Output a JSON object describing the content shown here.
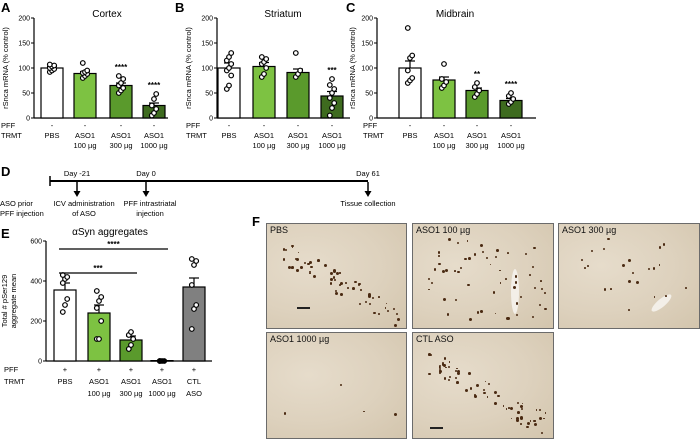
{
  "panel_letters": {
    "a": "A",
    "b": "B",
    "c": "C",
    "d": "D",
    "e": "E",
    "f": "F"
  },
  "row_labels": {
    "pff": "PFF",
    "trmt": "TRMT"
  },
  "chart_data": [
    {
      "id": "cortex",
      "type": "bar",
      "title": "Cortex",
      "ylabel": "rSnca mRNA (% control)",
      "ylim": [
        0,
        200
      ],
      "yticks": [
        0,
        50,
        100,
        150,
        200
      ],
      "categories": [
        [
          "PBS",
          ""
        ],
        [
          "ASO1",
          "100 µg"
        ],
        [
          "ASO1",
          "300 µg"
        ],
        [
          "ASO1",
          "1000 µg"
        ]
      ],
      "pff": [
        "-",
        "-",
        "-",
        "-"
      ],
      "values": [
        100,
        89,
        65,
        25
      ],
      "sem": [
        3,
        4,
        5,
        5
      ],
      "colors": [
        "#ffffff",
        "#7dc242",
        "#5a9a2c",
        "#3e6b1f"
      ],
      "significance": [
        "",
        "",
        "****",
        "****"
      ],
      "points": [
        [
          92,
          95,
          98,
          100,
          103,
          105,
          107
        ],
        [
          80,
          84,
          88,
          90,
          92,
          95,
          110
        ],
        [
          50,
          55,
          60,
          65,
          70,
          78,
          84
        ],
        [
          5,
          10,
          18,
          25,
          38,
          48
        ]
      ]
    },
    {
      "id": "striatum",
      "type": "bar",
      "title": "Striatum",
      "ylabel": "rSnca mRNA (% control)",
      "ylim": [
        0,
        200
      ],
      "yticks": [
        0,
        50,
        100,
        150,
        200
      ],
      "categories": [
        [
          "PBS",
          ""
        ],
        [
          "ASO1",
          "100 µg"
        ],
        [
          "ASO1",
          "300 µg"
        ],
        [
          "ASO1",
          "1000 µg"
        ]
      ],
      "pff": [
        "-",
        "-",
        "-",
        "-"
      ],
      "values": [
        100,
        103,
        91,
        44
      ],
      "sem": [
        10,
        8,
        7,
        9
      ],
      "colors": [
        "#ffffff",
        "#7dc242",
        "#5a9a2c",
        "#3e6b1f"
      ],
      "significance": [
        "",
        "",
        "",
        "***"
      ],
      "points": [
        [
          58,
          65,
          85,
          95,
          100,
          108,
          115,
          122,
          130
        ],
        [
          82,
          88,
          100,
          108,
          112,
          118,
          122
        ],
        [
          82,
          88,
          95,
          130
        ],
        [
          5,
          20,
          30,
          40,
          50,
          58,
          66,
          78
        ]
      ]
    },
    {
      "id": "midbrain",
      "type": "bar",
      "title": "Midbrain",
      "ylabel": "rSnca mRNA (% control)",
      "ylim": [
        0,
        200
      ],
      "yticks": [
        0,
        50,
        100,
        150,
        200
      ],
      "categories": [
        [
          "PBS",
          ""
        ],
        [
          "ASO1",
          "100 µg"
        ],
        [
          "ASO1",
          "300 µg"
        ],
        [
          "ASO1",
          "1000 µg"
        ]
      ],
      "pff": [
        "-",
        "-",
        "-",
        "-"
      ],
      "values": [
        100,
        76,
        55,
        35
      ],
      "sem": [
        14,
        6,
        5,
        4
      ],
      "colors": [
        "#ffffff",
        "#7dc242",
        "#5a9a2c",
        "#3e6b1f"
      ],
      "significance": [
        "",
        "",
        "**",
        "****"
      ],
      "points": [
        [
          70,
          75,
          80,
          95,
          120,
          125,
          180
        ],
        [
          60,
          65,
          72,
          78,
          108
        ],
        [
          42,
          48,
          55,
          62,
          70
        ],
        [
          28,
          32,
          38,
          44,
          50
        ]
      ]
    },
    {
      "id": "aggregates",
      "type": "bar",
      "title": "αSyn aggregates",
      "ylabel": [
        "Total # pSer129",
        "aggregate mean"
      ],
      "ylim": [
        0,
        600
      ],
      "yticks": [
        0,
        200,
        400,
        600
      ],
      "categories": [
        [
          "PBS",
          ""
        ],
        [
          "ASO1",
          "100 µg"
        ],
        [
          "ASO1",
          "300 µg"
        ],
        [
          "ASO1",
          "1000 µg"
        ],
        [
          "CTL",
          "ASO"
        ]
      ],
      "pff": [
        "+",
        "+",
        "+",
        "+",
        "+"
      ],
      "values": [
        355,
        240,
        105,
        2,
        370
      ],
      "sem": [
        35,
        40,
        20,
        1,
        45
      ],
      "colors": [
        "#ffffff",
        "#7dc242",
        "#5a9a2c",
        "#3e6b1f",
        "#808080"
      ],
      "comparisons": [
        {
          "from": 0,
          "to": 2,
          "y": 440,
          "label": "***"
        },
        {
          "from": 0,
          "to": 3,
          "y": 560,
          "label": "****"
        }
      ],
      "points": [
        [
          245,
          280,
          310,
          390,
          410,
          420,
          430
        ],
        [
          110,
          110,
          200,
          265,
          300,
          320,
          350
        ],
        [
          60,
          80,
          110,
          130,
          145
        ],
        [
          0,
          0,
          0,
          0
        ],
        [
          160,
          260,
          280,
          380,
          480,
          500,
          510
        ]
      ]
    }
  ],
  "timeline": {
    "side_label": [
      "ASO prior",
      "PFF injection"
    ],
    "events": [
      {
        "day": "Day -21",
        "label": [
          "ICV administration",
          "of ASO"
        ]
      },
      {
        "day": "Day 0",
        "label": [
          "PFF intrastriatal",
          "injection"
        ]
      },
      {
        "day": "Day 61",
        "label": [
          "Tissue collection"
        ]
      }
    ]
  },
  "histology": [
    {
      "label": "PBS",
      "density": 60
    },
    {
      "label": "ASO1 100 µg",
      "density": 55
    },
    {
      "label": "ASO1 300 µg",
      "density": 22
    },
    {
      "label": "ASO1 1000 µg",
      "density": 4
    },
    {
      "label": "CTL ASO",
      "density": 65
    }
  ]
}
